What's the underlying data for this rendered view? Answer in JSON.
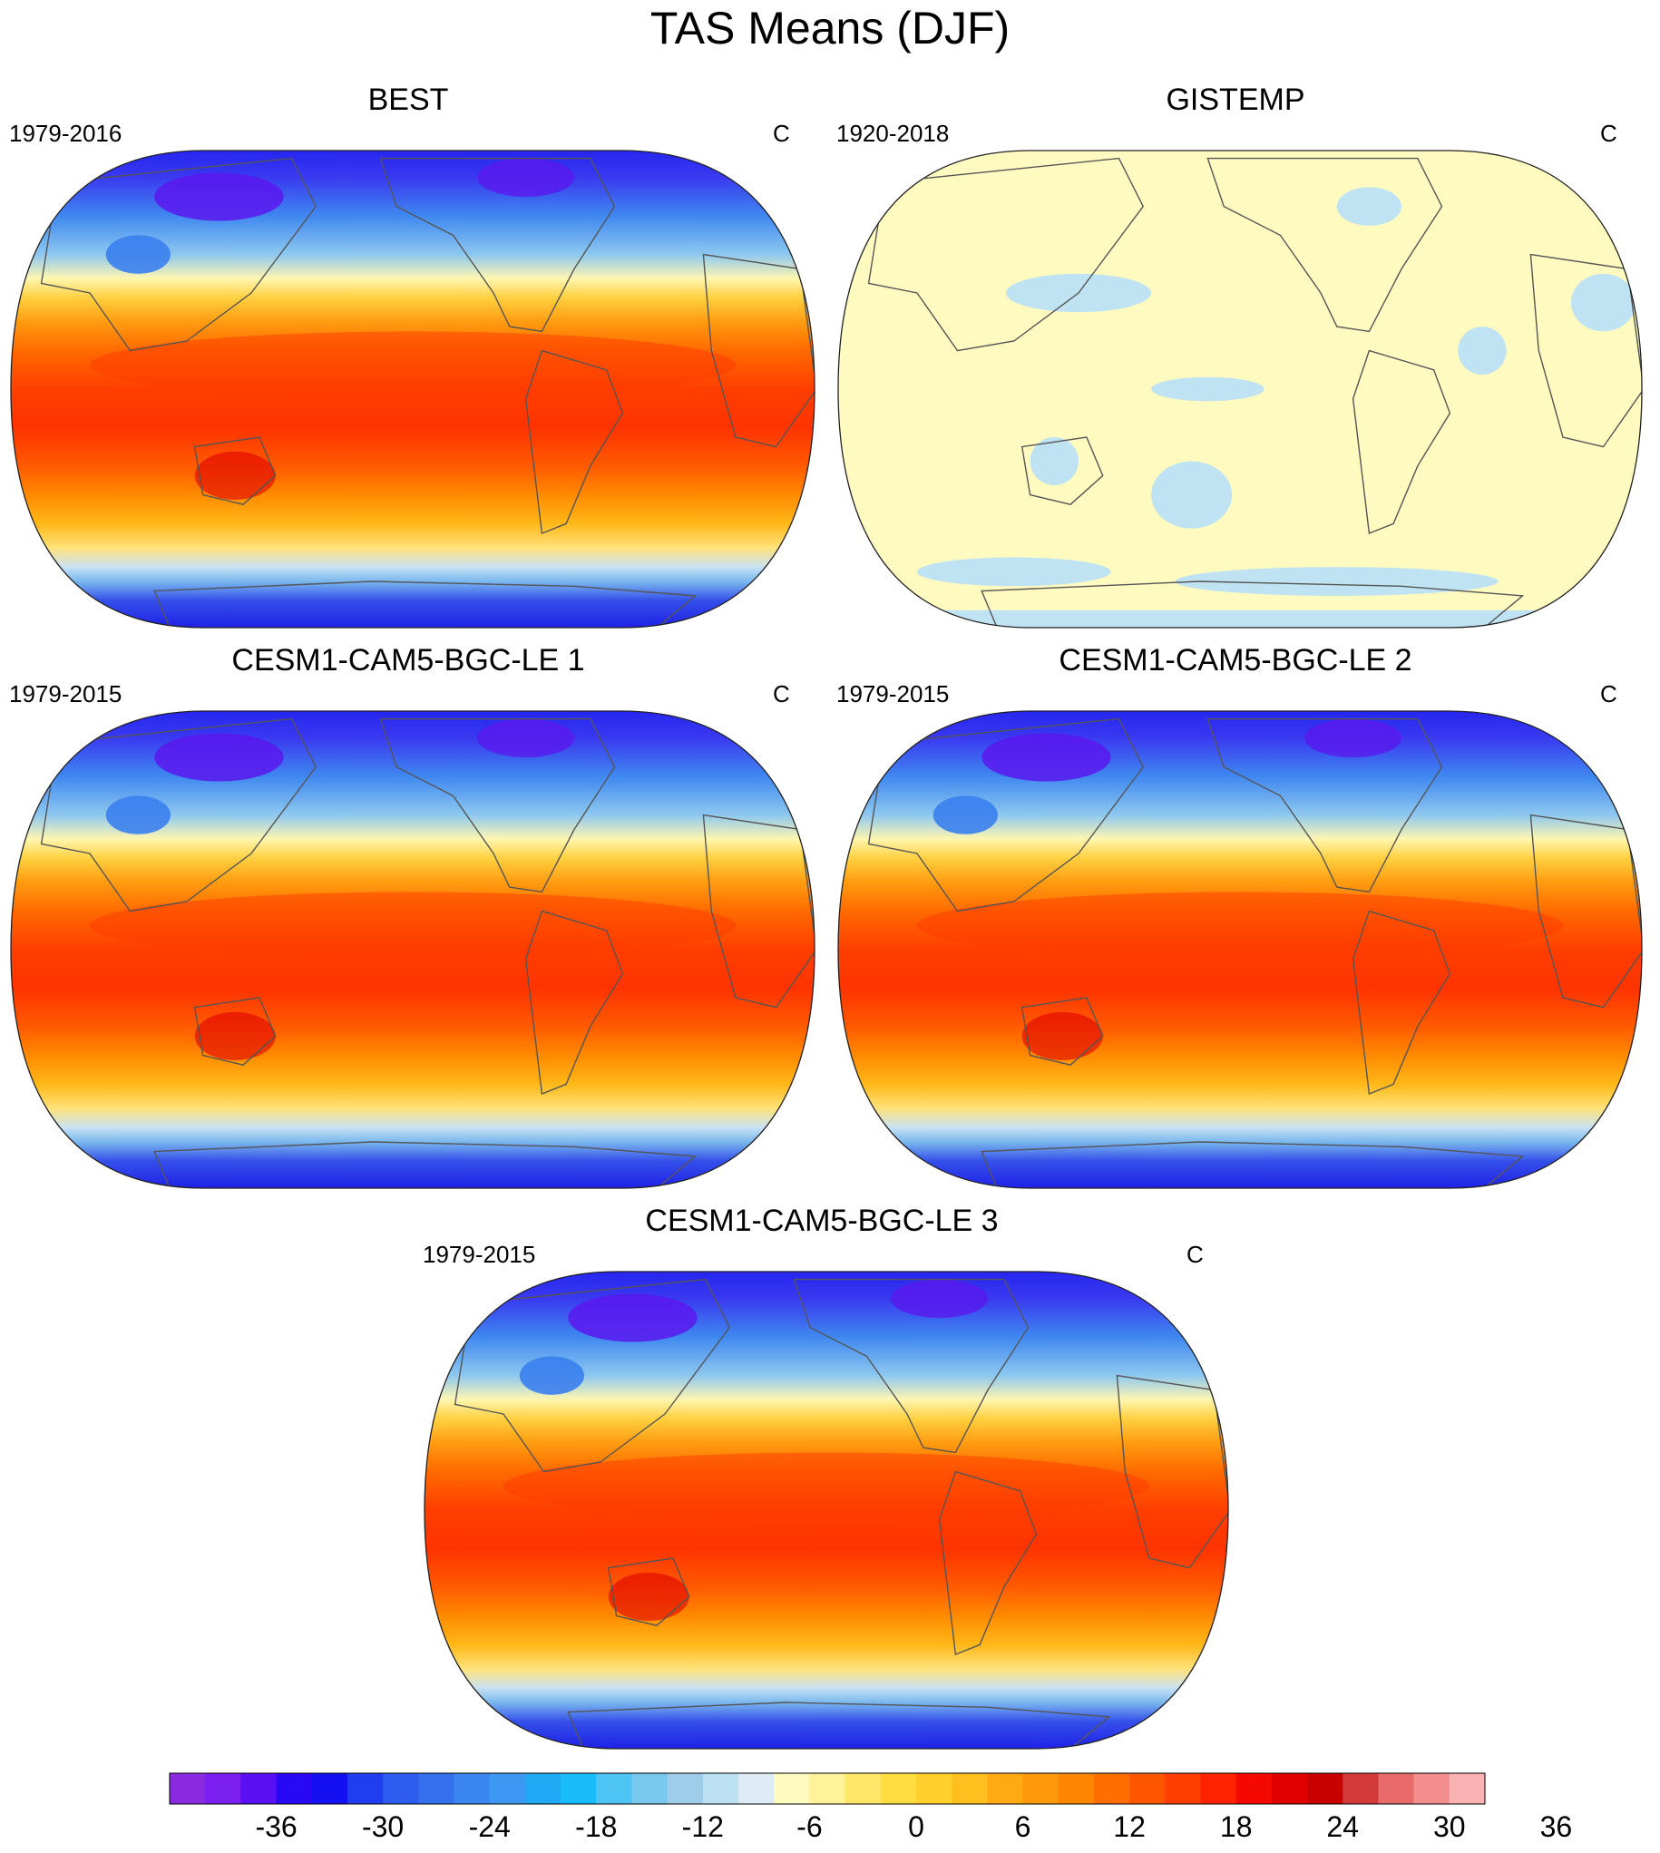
{
  "title": "TAS Means (DJF)",
  "projection": "Robinson",
  "panels": [
    {
      "name": "BEST",
      "period": "1979-2016",
      "units": "C",
      "fill": "realistic"
    },
    {
      "name": "GISTEMP",
      "period": "1920-2018",
      "units": "C",
      "fill": "mostly-near-zero"
    },
    {
      "name": "CESM1-CAM5-BGC-LE 1",
      "period": "1979-2015",
      "units": "C",
      "fill": "realistic"
    },
    {
      "name": "CESM1-CAM5-BGC-LE 2",
      "period": "1979-2015",
      "units": "C",
      "fill": "realistic"
    },
    {
      "name": "CESM1-CAM5-BGC-LE 3",
      "period": "1979-2015",
      "units": "C",
      "fill": "realistic"
    }
  ],
  "colorbar": {
    "tick_labels": [
      "-36",
      "-30",
      "-24",
      "-18",
      "-12",
      "-6",
      "0",
      "6",
      "12",
      "18",
      "24",
      "30",
      "36"
    ],
    "colors": [
      "#8a2be2",
      "#7a1ff0",
      "#5a0ff5",
      "#2808f5",
      "#1410f2",
      "#1f3ef0",
      "#2d5cee",
      "#3470ee",
      "#3a86f0",
      "#3c98f2",
      "#20aaf5",
      "#18bcf8",
      "#4ec4f4",
      "#78c8ee",
      "#9ecdea",
      "#bcdff2",
      "#dcebf6",
      "#fffbc0",
      "#fff299",
      "#ffe869",
      "#ffdc40",
      "#ffd02c",
      "#ffbf1e",
      "#ffaa12",
      "#ff980a",
      "#ff8600",
      "#ff6e00",
      "#ff5600",
      "#ff3e00",
      "#ff2200",
      "#f40800",
      "#e00000",
      "#c80000",
      "#d23a3a",
      "#e86a6a",
      "#f28e8e",
      "#fbb2b2"
    ]
  }
}
